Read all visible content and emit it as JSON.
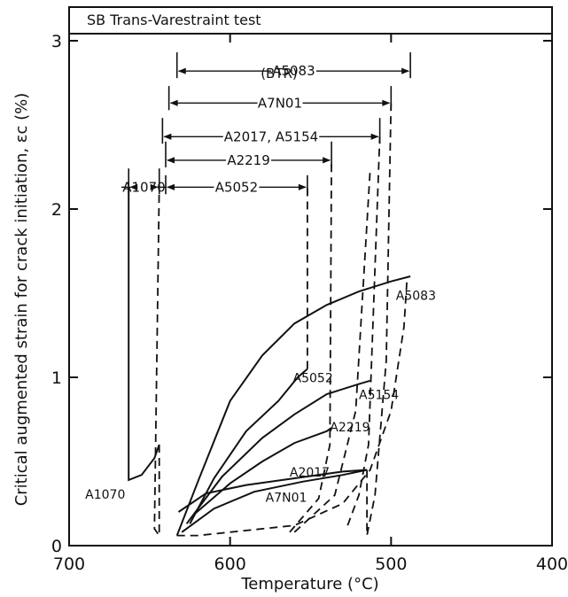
{
  "chart_data": {
    "type": "line",
    "title": "SB Trans-Varestraint test",
    "xlabel": "Temperature (°C)",
    "ylabel": "Critical augmented strain for crack initiation, εc (%)",
    "xlim": [
      700,
      400
    ],
    "ylim": [
      0,
      3.2
    ],
    "x_ticks": [
      "700",
      "600",
      "500",
      "400"
    ],
    "y_ticks": [
      "0",
      "1",
      "2",
      "3"
    ],
    "grid": false,
    "btr_header": "(BTR)",
    "btr_ranges": [
      {
        "name": "A5083",
        "from": 633,
        "to": 488,
        "y": 2.82,
        "marker_y": 2.91
      },
      {
        "name": "A7N01",
        "from": 638,
        "to": 500,
        "y": 2.63,
        "marker_y": 2.71
      },
      {
        "name": "A2017, A5154",
        "from": 642,
        "to": 507,
        "y": 2.43,
        "marker_y": 2.52
      },
      {
        "name": "A2219",
        "from": 640,
        "to": 537,
        "y": 2.29,
        "marker_y": 2.38
      },
      {
        "name": "A5052",
        "from": 640,
        "to": 552,
        "y": 2.13,
        "marker_y": 2.18
      },
      {
        "name": "A1070",
        "from": 663,
        "to": 644,
        "y": 2.13,
        "marker_y": 2.22
      }
    ],
    "series": [
      {
        "name": "A5083",
        "solid": [
          [
            633,
            0.06
          ],
          [
            620,
            0.38
          ],
          [
            600,
            0.86
          ],
          [
            580,
            1.13
          ],
          [
            560,
            1.32
          ],
          [
            540,
            1.43
          ],
          [
            520,
            1.51
          ],
          [
            500,
            1.57
          ],
          [
            488,
            1.6
          ]
        ],
        "dashed": [
          [
            633,
            0.06
          ],
          [
            620,
            0.06
          ],
          [
            560,
            0.12
          ],
          [
            530,
            0.25
          ],
          [
            513,
            0.45
          ],
          [
            500,
            0.8
          ],
          [
            492,
            1.3
          ],
          [
            490,
            1.6
          ]
        ],
        "label_at": [
          497,
          1.46
        ]
      },
      {
        "name": "A5052",
        "solid": [
          [
            625,
            0.13
          ],
          [
            610,
            0.4
          ],
          [
            590,
            0.68
          ],
          [
            570,
            0.86
          ],
          [
            558,
            1.0
          ],
          [
            552,
            1.05
          ]
        ],
        "dashed": [
          [
            552,
            1.05
          ],
          [
            552,
            2.13
          ]
        ],
        "label_at": [
          561,
          0.97
        ]
      },
      {
        "name": "A5154",
        "solid": [
          [
            627,
            0.13
          ],
          [
            605,
            0.41
          ],
          [
            580,
            0.64
          ],
          [
            560,
            0.78
          ],
          [
            540,
            0.9
          ],
          [
            520,
            0.96
          ],
          [
            513,
            0.98
          ]
        ],
        "dashed": [
          [
            560,
            0.08
          ],
          [
            535,
            0.3
          ],
          [
            522,
            0.8
          ],
          [
            513,
            2.23
          ]
        ],
        "label_at": [
          520,
          0.87
        ]
      },
      {
        "name": "A2219",
        "solid": [
          [
            623,
            0.18
          ],
          [
            600,
            0.37
          ],
          [
            580,
            0.5
          ],
          [
            560,
            0.61
          ],
          [
            540,
            0.68
          ],
          [
            537,
            0.7
          ]
        ],
        "dashed": [
          [
            563,
            0.08
          ],
          [
            545,
            0.28
          ],
          [
            538,
            0.6
          ],
          [
            537,
            2.29
          ]
        ],
        "label_at": [
          538,
          0.68
        ]
      },
      {
        "name": "A2017",
        "solid": [
          [
            632,
            0.2
          ],
          [
            615,
            0.31
          ],
          [
            590,
            0.36
          ],
          [
            560,
            0.4
          ],
          [
            530,
            0.44
          ],
          [
            515,
            0.45
          ]
        ],
        "dashed": [
          [
            527,
            0.12
          ],
          [
            520,
            0.3
          ],
          [
            514,
            0.6
          ],
          [
            507,
            2.43
          ]
        ],
        "label_at": [
          563,
          0.41
        ]
      },
      {
        "name": "A7N01",
        "solid": [
          [
            630,
            0.08
          ],
          [
            610,
            0.22
          ],
          [
            585,
            0.32
          ],
          [
            555,
            0.38
          ],
          [
            530,
            0.42
          ],
          [
            515,
            0.45
          ]
        ],
        "dashed": [
          [
            515,
            0.45
          ],
          [
            515,
            0.06
          ],
          [
            510,
            0.3
          ],
          [
            503,
            1.1
          ],
          [
            500,
            2.63
          ]
        ],
        "label_at": [
          578,
          0.26
        ]
      },
      {
        "name": "A1070",
        "solid": [
          [
            663,
            2.13
          ],
          [
            663,
            0.39
          ],
          [
            655,
            0.42
          ],
          [
            647,
            0.52
          ],
          [
            644,
            0.6
          ]
        ],
        "dashed": [
          [
            644,
            0.6
          ],
          [
            644,
            0.06
          ],
          [
            647,
            0.1
          ],
          [
            644,
            2.13
          ]
        ],
        "label_at": [
          690,
          0.28
        ]
      }
    ]
  }
}
